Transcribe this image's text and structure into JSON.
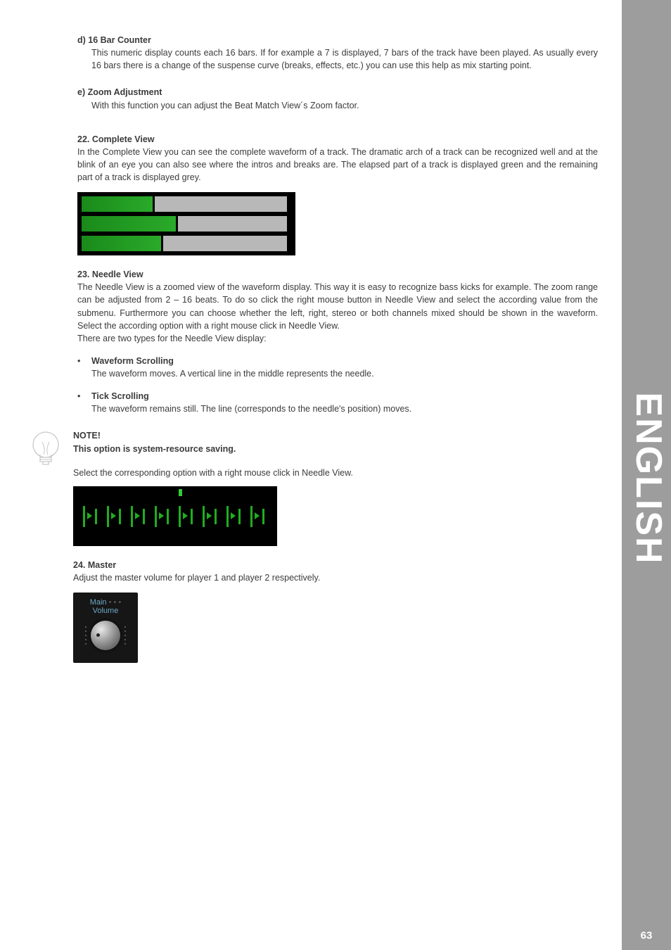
{
  "sideLabel": "ENGLISH",
  "pageNumber": "63",
  "d": {
    "heading": "d) 16 Bar Counter",
    "body": "This numeric display counts each 16 bars. If for example a 7 is displayed, 7 bars of the track have been played. As usually every 16 bars there is a change of the suspense curve (breaks, effects, etc.) you can use this help as mix starting point."
  },
  "e": {
    "heading": "e) Zoom Adjustment",
    "body": "With this function you can adjust the Beat Match View´s Zoom factor."
  },
  "s22": {
    "heading": "22. Complete View",
    "body": "In the Complete View you can see the complete waveform of a track. The dramatic arch of a track can be recognized well and at the blink of an eye you can also see where the intros and breaks are. The elapsed part of a track is displayed green and the remaining part of a track is displayed grey."
  },
  "s23": {
    "heading": "23. Needle View",
    "body": "The Needle View is a zoomed view of the waveform display. This way it is easy to recognize bass kicks for example. The zoom range can be adjusted from 2 – 16 beats. To do so click the right mouse button in Needle View and select the according value from the submenu. Furthermore you can choose whether the left, right, stereo or both channels mixed should be shown in the waveform. Select the according option with a right mouse click in Needle View.",
    "body2": "There are two types for the Needle View display:",
    "bullets": {
      "wave_h": "Waveform Scrolling",
      "wave_b": "The waveform moves. A vertical line in the middle represents the needle.",
      "tick_h": "Tick Scrolling",
      "tick_b": "The waveform remains still. The line (corresponds to the needle's position) moves."
    }
  },
  "note": {
    "h": "NOTE!",
    "b": "This option is system-resource saving.",
    "after": "Select the corresponding option with a right mouse click in Needle View."
  },
  "s24": {
    "heading": "24. Master",
    "body": "Adjust the master volume for player 1 and player 2 respectively."
  },
  "master": {
    "l1": "Main",
    "l2": "Volume"
  },
  "needleView": {
    "markLeft": 150,
    "segCount": 8,
    "segStart": 6,
    "segStep": 34
  },
  "colors": {
    "sideBg": "#9d9d9d",
    "text": "#3b3b3b",
    "green": "#1fae1f",
    "grey": "#b8b8b8"
  }
}
